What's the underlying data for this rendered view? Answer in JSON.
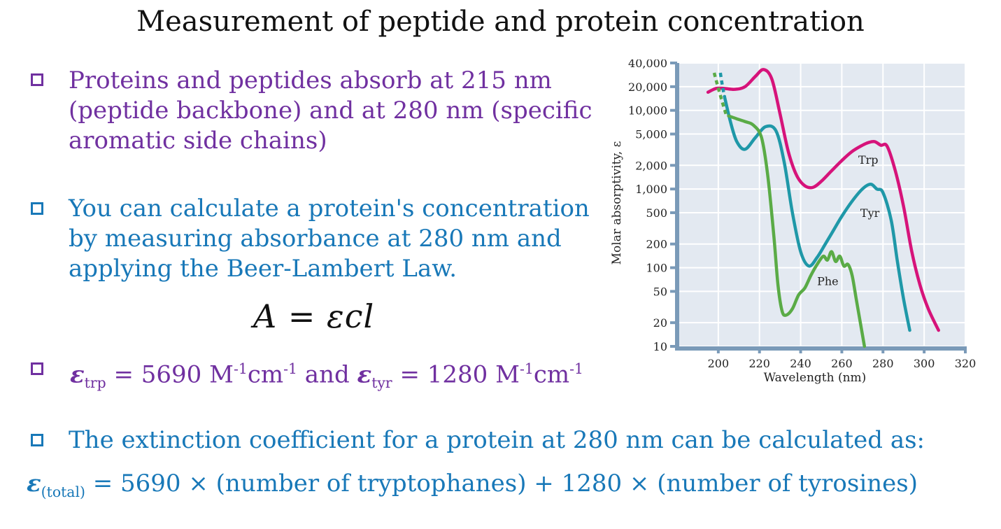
{
  "slide": {
    "title": "Measurement of peptide and protein concentration",
    "bullet1": [
      "Proteins and peptides absorb at 215 nm",
      "(peptide backbone) and at 280 nm (specific",
      "aromatic side chains)"
    ],
    "bullet2": [
      "You can calculate a protein's concentration",
      "by measuring absorbance at 280 nm and",
      "applying the Beer-Lambert Law."
    ],
    "formula": "A = εcl",
    "bullet3": {
      "eps_symbol": "ε",
      "trp_sub": "trp",
      "trp_value": " = 5690 M",
      "exp": "-1",
      "unit_cm": "cm",
      "and_text": " and ",
      "tyr_sub": "tyr",
      "tyr_value": " = 1280 M"
    },
    "bullet4": "The extinction coefficient for a protein at 280 nm can be calculated as:",
    "total_line": {
      "eps_symbol": "ε",
      "sub": "(total)",
      "text": " = 5690 × (number of tryptophanes) + 1280 × (number of tyrosines)"
    },
    "colors": {
      "purple": "#7030a0",
      "blue": "#1878b8",
      "trp": "#d6137a",
      "tyr": "#1f98a8",
      "phe": "#5aab46",
      "plot_bg": "#e3e9f1",
      "axis": "#7a9ab8"
    }
  },
  "chart_data": {
    "type": "line",
    "xlabel": "Wavelength (nm)",
    "ylabel": "Molar absorptivity, ε",
    "xlim": [
      180,
      320
    ],
    "ylim": [
      10,
      40000
    ],
    "yscale": "log",
    "x_ticks": [
      200,
      220,
      240,
      260,
      280,
      300,
      320
    ],
    "y_ticks": [
      {
        "value": 10,
        "label": "10"
      },
      {
        "value": 20,
        "label": "20"
      },
      {
        "value": 50,
        "label": "50"
      },
      {
        "value": 100,
        "label": "100"
      },
      {
        "value": 200,
        "label": "200"
      },
      {
        "value": 500,
        "label": "500"
      },
      {
        "value": 1000,
        "label": "1,000"
      },
      {
        "value": 2000,
        "label": "2,000"
      },
      {
        "value": 5000,
        "label": "5,000"
      },
      {
        "value": 10000,
        "label": "10,000"
      },
      {
        "value": 20000,
        "label": "20,000"
      },
      {
        "value": 40000,
        "label": "40,000"
      }
    ],
    "series": [
      {
        "name": "Trp",
        "label_at": [
          268,
          2100
        ],
        "x": [
          195,
          199,
          203,
          208,
          213,
          218,
          222,
          226,
          230,
          234,
          238,
          242,
          246,
          250,
          255,
          260,
          265,
          270,
          273,
          276,
          279,
          282,
          286,
          290,
          294,
          298,
          302,
          307
        ],
        "y": [
          17000,
          19000,
          19000,
          18500,
          20000,
          27000,
          33000,
          25000,
          9000,
          3000,
          1500,
          1100,
          1050,
          1250,
          1700,
          2300,
          3000,
          3600,
          3900,
          4000,
          3600,
          3500,
          1700,
          600,
          160,
          60,
          30,
          16
        ]
      },
      {
        "name": "Tyr",
        "label_at": [
          269,
          440
        ],
        "x": [
          203,
          206,
          209,
          213,
          218,
          223,
          228,
          232,
          236,
          240,
          244,
          248,
          252,
          256,
          260,
          265,
          270,
          274,
          277,
          280,
          284,
          287,
          290,
          293
        ],
        "y": [
          15000,
          7000,
          4000,
          3200,
          4500,
          6200,
          5500,
          2200,
          500,
          160,
          105,
          135,
          200,
          300,
          450,
          700,
          1000,
          1150,
          1000,
          900,
          400,
          120,
          40,
          16
        ]
      },
      {
        "name": "Phe",
        "label_at": [
          248,
          60
        ],
        "x": [
          205,
          209,
          213,
          217,
          221,
          224,
          227,
          229,
          231,
          233,
          236,
          239,
          242,
          245,
          248,
          251,
          253,
          255,
          257,
          259,
          261,
          263,
          265,
          267,
          269,
          271
        ],
        "y": [
          8500,
          7800,
          7200,
          6500,
          4500,
          1500,
          250,
          60,
          28,
          25,
          30,
          45,
          55,
          80,
          110,
          140,
          125,
          160,
          120,
          140,
          105,
          110,
          80,
          40,
          20,
          10
        ]
      }
    ]
  }
}
